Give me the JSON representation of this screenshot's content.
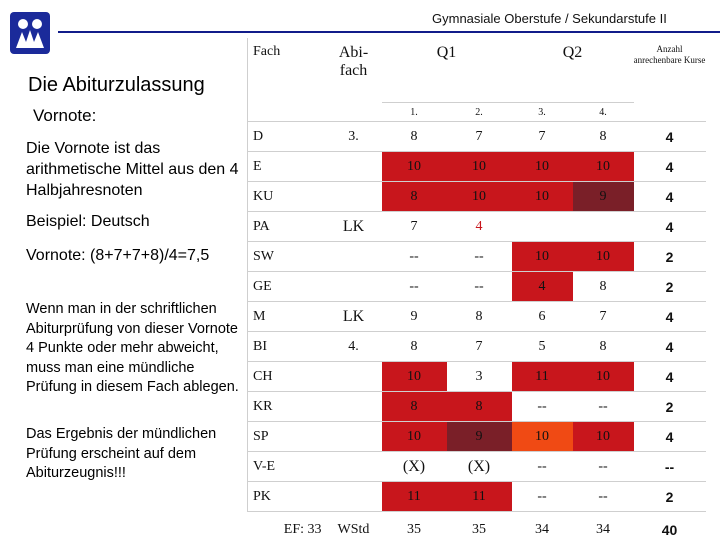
{
  "header": {
    "title": "Gymnasiale Oberstufe / Sekundarstufe II",
    "logo_icon": "school-logo-icon",
    "rule_color": "#111c8a"
  },
  "left": {
    "heading": "Die Abiturzulassung",
    "vornote_label": "Vornote:",
    "description": "Die Vornote ist das arithmetische Mittel aus den 4 Halbjahresnoten",
    "beispiel": "Beispiel: Deutsch",
    "calculation": "Vornote: (8+7+7+8)/4=7,5",
    "rule": "Wenn man in der schriftlichen Abiturprüfung von dieser Vornote 4 Punkte oder mehr abweicht, muss man eine mündliche Prüfung in diesem Fach ablegen.",
    "result": "Das Ergebnis der mündlichen Prüfung erscheint auf dem Abiturzeugnis!!!"
  },
  "table": {
    "col_fach": "Fach",
    "col_abifach": "Abi-fach",
    "col_q1": "Q1",
    "col_q2": "Q2",
    "col_anzahl": "Anzahl anrechenbare Kurse",
    "sem": [
      "1.",
      "2.",
      "3.",
      "4."
    ],
    "colors": {
      "dark": "#7a1f28",
      "red": "#c8161c",
      "orange": "#f04a14"
    },
    "rows": [
      {
        "subject": "D",
        "abi": "3.",
        "s1": "8",
        "s2": "7",
        "s3": "7",
        "s4": "8",
        "count": "4"
      },
      {
        "subject": "E",
        "abi": "",
        "s1": "10",
        "s2": "10",
        "s3": "10",
        "s4": "10",
        "count": "4"
      },
      {
        "subject": "KU",
        "abi": "",
        "s1": "8",
        "s2": "10",
        "s3": "10",
        "s4": "9",
        "count": "4"
      },
      {
        "subject": "PA",
        "abi": "LK",
        "s1": "7",
        "s2": "4",
        "s3": "",
        "s4": "",
        "count": "4"
      },
      {
        "subject": "SW",
        "abi": "",
        "s1": "--",
        "s2": "--",
        "s3": "10",
        "s4": "10",
        "count": "2"
      },
      {
        "subject": "GE",
        "abi": "",
        "s1": "--",
        "s2": "--",
        "s3": "4",
        "s4": "8",
        "count": "2"
      },
      {
        "subject": "M",
        "abi": "LK",
        "s1": "9",
        "s2": "8",
        "s3": "6",
        "s4": "7",
        "count": "4"
      },
      {
        "subject": "BI",
        "abi": "4.",
        "s1": "8",
        "s2": "7",
        "s3": "5",
        "s4": "8",
        "count": "4"
      },
      {
        "subject": "CH",
        "abi": "",
        "s1": "10",
        "s2": "3",
        "s3": "11",
        "s4": "10",
        "count": "4"
      },
      {
        "subject": "KR",
        "abi": "",
        "s1": "8",
        "s2": "8",
        "s3": "--",
        "s4": "--",
        "count": "2"
      },
      {
        "subject": "SP",
        "abi": "",
        "s1": "10",
        "s2": "9",
        "s3": "10",
        "s4": "10",
        "count": "4"
      },
      {
        "subject": "V-E",
        "abi": "",
        "s1": "(X)",
        "s2": "(X)",
        "s3": "--",
        "s4": "--",
        "count": "--"
      },
      {
        "subject": "PK",
        "abi": "",
        "s1": "11",
        "s2": "11",
        "s3": "--",
        "s4": "--",
        "count": "2"
      }
    ],
    "footer": {
      "ef": "EF: 33",
      "wstd": "WStd",
      "s1": "35",
      "s2": "35",
      "s3": "34",
      "s4": "34",
      "total": "40"
    }
  }
}
